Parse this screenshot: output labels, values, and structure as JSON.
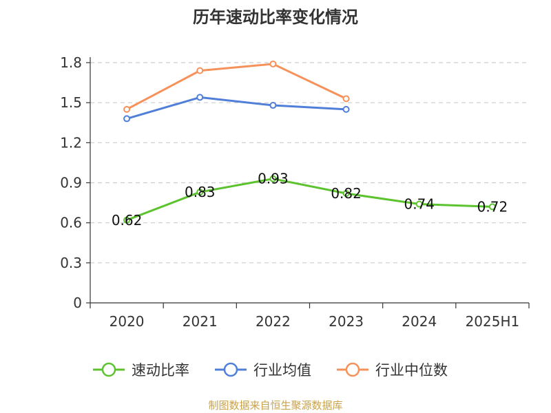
{
  "chart_data": {
    "type": "line",
    "title": "历年速动比率变化情况",
    "categories": [
      "2020",
      "2021",
      "2022",
      "2023",
      "2024",
      "2025H1"
    ],
    "ylim": [
      0,
      1.8
    ],
    "yticks": [
      "0",
      "0.3",
      "0.6",
      "0.9",
      "1.2",
      "1.5",
      "1.8"
    ],
    "grid": true,
    "legend_position": "bottom",
    "series": [
      {
        "name": "速动比率",
        "color": "#5cc32f",
        "values": [
          0.62,
          0.83,
          0.93,
          0.82,
          0.74,
          0.72
        ],
        "labels": [
          "0.62",
          "0.83",
          "0.93",
          "0.82",
          "0.74",
          "0.72"
        ],
        "show_labels": true
      },
      {
        "name": "行业均值",
        "color": "#4f7fd8",
        "values": [
          1.38,
          1.54,
          1.48,
          1.45,
          null,
          null
        ],
        "show_labels": false
      },
      {
        "name": "行业中位数",
        "color": "#f7915a",
        "values": [
          1.45,
          1.74,
          1.79,
          1.53,
          null,
          null
        ],
        "show_labels": false
      }
    ]
  },
  "source": "制图数据来自恒生聚源数据库"
}
